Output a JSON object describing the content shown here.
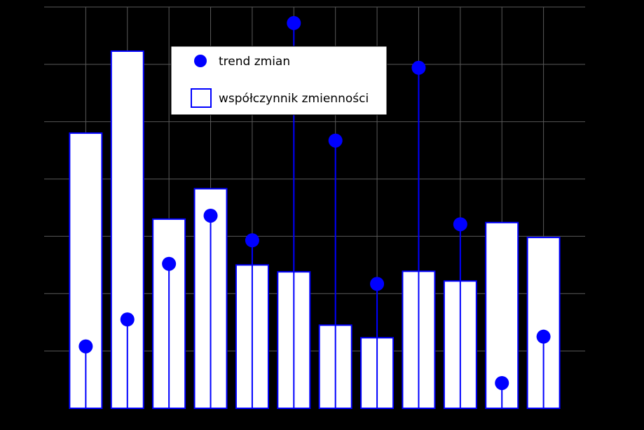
{
  "chart_data": {
    "type": "bar",
    "categories": [
      "",
      "",
      "",
      "",
      "",
      "",
      "",
      "",
      "",
      "",
      "",
      ""
    ],
    "ylim": [
      0,
      7
    ],
    "grid": true,
    "legend_position": "top-center",
    "series": [
      {
        "name": "trend zmian",
        "kind": "stem",
        "color": "#0000ff",
        "values": [
          1.08,
          1.55,
          2.52,
          3.36,
          2.93,
          6.72,
          4.67,
          2.17,
          5.94,
          3.21,
          0.44,
          1.25
        ]
      },
      {
        "name": "współczynnik zmienności",
        "kind": "bar",
        "color": "#0000ff",
        "fill": "#ffffff",
        "values": [
          4.8,
          6.23,
          3.3,
          3.83,
          2.5,
          2.38,
          1.45,
          1.23,
          2.39,
          2.22,
          3.24,
          2.98
        ]
      }
    ]
  },
  "legend": {
    "items": [
      {
        "label": "trend zmian"
      },
      {
        "label": "współczynnik zmienności"
      }
    ]
  }
}
